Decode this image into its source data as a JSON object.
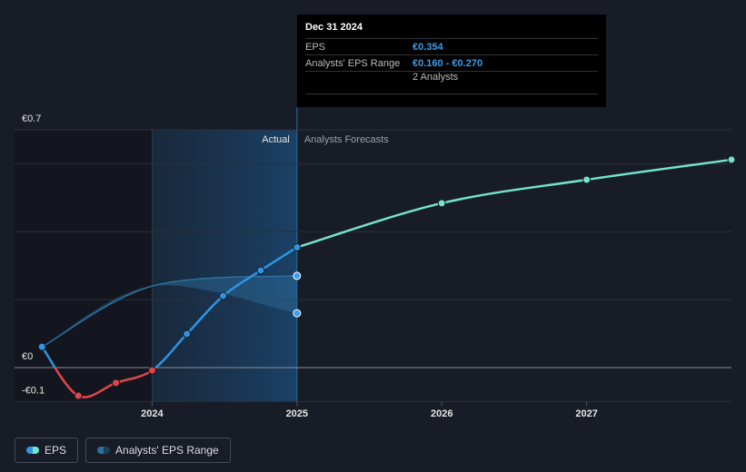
{
  "chart_data": {
    "type": "line",
    "xlim": [
      2023.05,
      2028.0
    ],
    "xticks": [
      2024,
      2025,
      2026,
      2027
    ],
    "ylim": [
      -0.1,
      0.7
    ],
    "yticks": [
      {
        "value": 0.7,
        "label": "€0.7"
      },
      {
        "value": 0,
        "label": "€0"
      },
      {
        "value": -0.1,
        "label": "-€0.1"
      }
    ],
    "gridlines": [
      0.2,
      0.4,
      0.6
    ],
    "regions": {
      "highlight_start": 2024,
      "divider": 2025,
      "actual_label": "Actual",
      "forecast_label": "Analysts Forecasts"
    },
    "series": [
      {
        "name": "EPS",
        "color": "#2d95e3",
        "negative_color": "#e0474c",
        "forecast_color": "#72e3cc",
        "x": [
          2023.24,
          2023.49,
          2023.75,
          2024.0,
          2024.24,
          2024.49,
          2024.75,
          2025.0,
          2026.0,
          2027.0,
          2028.0
        ],
        "values": [
          0.061,
          -0.083,
          -0.045,
          -0.008,
          0.099,
          0.211,
          0.286,
          0.354,
          0.484,
          0.553,
          0.612
        ]
      },
      {
        "name": "Analysts' EPS Range",
        "color": "#2d6f9f",
        "x": [
          2023.24,
          2024.0,
          2025.0
        ],
        "low": [
          0.061,
          0.24,
          0.16
        ],
        "high": [
          0.061,
          0.24,
          0.27
        ]
      }
    ],
    "tooltip": {
      "date": "Dec 31 2024",
      "rows": [
        {
          "label": "EPS",
          "value": "€0.354"
        },
        {
          "label": "Analysts' EPS Range",
          "value": "€0.160 - €0.270"
        }
      ],
      "analysts": "2 Analysts"
    }
  }
}
